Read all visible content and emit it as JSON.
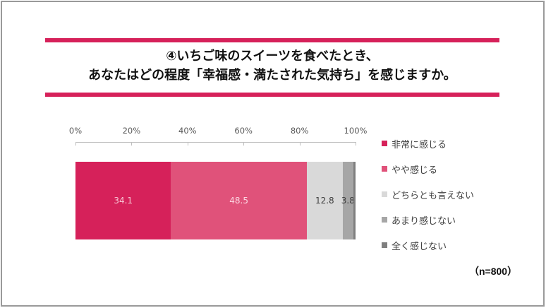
{
  "title": {
    "line1": "④いちご味のスイーツを食べたとき、",
    "line2": "あなたはどの程度「幸福感・満たされた気持ち」を感じますか。"
  },
  "axis": {
    "ticks": [
      "0%",
      "20%",
      "40%",
      "60%",
      "80%",
      "100%"
    ]
  },
  "sample_note": "（n=800）",
  "colors": {
    "accent_rule": "#d6215a",
    "very": "#d6215a",
    "somewhat": "#e0527a",
    "neutral": "#d9d9d9",
    "not_much": "#a6a6a6",
    "not_at_all": "#7f7f7f"
  },
  "chart_data": {
    "type": "bar",
    "orientation": "horizontal",
    "stacked": true,
    "title": "④いちご味のスイーツを食べたとき、あなたはどの程度「幸福感・満たされた気持ち」を感じますか。",
    "xlabel": "",
    "ylabel": "",
    "xlim": [
      0,
      100
    ],
    "x_ticks": [
      "0%",
      "20%",
      "40%",
      "60%",
      "80%",
      "100%"
    ],
    "legend_position": "right",
    "grid": false,
    "categories": [
      ""
    ],
    "series": [
      {
        "name": "非常に感じる",
        "values": [
          34.1
        ],
        "label": "34.1",
        "color": "#d6215a",
        "label_color": "#f7c6d4"
      },
      {
        "name": "やや感じる",
        "values": [
          48.5
        ],
        "label": "48.5",
        "color": "#e0527a",
        "label_color": "#fbd6e1"
      },
      {
        "name": "どちらとも言えない",
        "values": [
          12.8
        ],
        "label": "12.8",
        "color": "#d9d9d9",
        "label_color": "#404040"
      },
      {
        "name": "あまり感じない",
        "values": [
          3.8
        ],
        "label": "3.8",
        "color": "#a6a6a6",
        "label_color": "#404040"
      },
      {
        "name": "全く感じない",
        "values": [
          0.8
        ],
        "label": "",
        "color": "#7f7f7f",
        "label_color": "#404040"
      }
    ],
    "annotations": [
      "（n=800）"
    ]
  }
}
